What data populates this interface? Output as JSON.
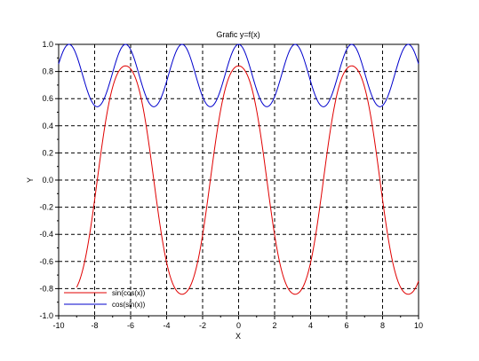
{
  "chart_data": {
    "type": "line",
    "title": "Grafic y=f(x)",
    "xlabel": "X",
    "ylabel": "Y",
    "xlim": [
      -10,
      10
    ],
    "ylim": [
      -1.0,
      1.0
    ],
    "grid": true,
    "grid_style": "dashed",
    "legend_position": "bottom-left",
    "x_ticks": [
      "-10",
      "-8",
      "-6",
      "-4",
      "-2",
      "0",
      "2",
      "4",
      "6",
      "8",
      "10"
    ],
    "y_ticks": [
      "-1.0",
      "-0.8",
      "-0.6",
      "-0.4",
      "-0.2",
      "0.0",
      "0.2",
      "0.4",
      "0.6",
      "0.8",
      "1.0"
    ],
    "series": [
      {
        "name": "sin(cos(x))",
        "color": "#e00000",
        "function": "sin(cos(x))",
        "x_range": [
          -9.0,
          10.0
        ],
        "points": [
          [
            -9,
            -0.7658
          ],
          [
            -8,
            -0.1447
          ],
          [
            -7,
            0.6925
          ],
          [
            -6.28,
            0.8415
          ],
          [
            -5,
            0.2804
          ],
          [
            -4,
            -0.6068
          ],
          [
            -3.14,
            -0.8415
          ],
          [
            -2,
            -0.4041
          ],
          [
            -1,
            0.5144
          ],
          [
            0,
            0.8415
          ],
          [
            1,
            0.5144
          ],
          [
            2,
            -0.4041
          ],
          [
            3.14,
            -0.8415
          ],
          [
            4,
            -0.6068
          ],
          [
            5,
            0.2804
          ],
          [
            6.28,
            0.8415
          ],
          [
            7,
            0.6925
          ],
          [
            8,
            -0.1447
          ],
          [
            9,
            -0.7658
          ],
          [
            10,
            -0.7456
          ]
        ]
      },
      {
        "name": "cos(sin(x))",
        "color": "#0000cc",
        "function": "cos(sin(x))",
        "x_range": [
          -10.0,
          10.0
        ],
        "points": [
          [
            -10,
            0.8612
          ],
          [
            -9.42,
            1.0
          ],
          [
            -7.85,
            0.5403
          ],
          [
            -6.28,
            1.0
          ],
          [
            -4.71,
            0.5403
          ],
          [
            -3.14,
            1.0
          ],
          [
            -1.57,
            0.5403
          ],
          [
            0,
            1.0
          ],
          [
            1.57,
            0.5403
          ],
          [
            3.14,
            1.0
          ],
          [
            4.71,
            0.5403
          ],
          [
            6.28,
            1.0
          ],
          [
            7.85,
            0.5403
          ],
          [
            9.42,
            1.0
          ],
          [
            10,
            0.8612
          ]
        ]
      }
    ]
  }
}
